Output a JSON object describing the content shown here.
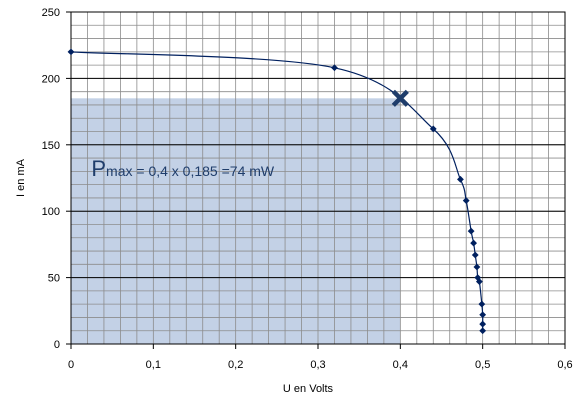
{
  "chart_data": {
    "type": "scatter",
    "title": "",
    "xlabel": "U en Volts",
    "ylabel": "I en mA",
    "xlim": [
      0,
      0.6
    ],
    "ylim": [
      0,
      250
    ],
    "x_tick_labels": [
      "0",
      "0,1",
      "0,2",
      "0,3",
      "0,4",
      "0,5",
      "0,6"
    ],
    "y_tick_labels": [
      "0",
      "50",
      "100",
      "150",
      "200",
      "250"
    ],
    "grid": true,
    "x_minor_step": 0.02,
    "y_minor_step": 10,
    "series": [
      {
        "marker": "diamond",
        "line": "smooth",
        "color": "#00205f",
        "points": [
          [
            0.0,
            220
          ],
          [
            0.32,
            208
          ],
          [
            0.44,
            162
          ],
          [
            0.473,
            124
          ],
          [
            0.48,
            108
          ],
          [
            0.486,
            85
          ],
          [
            0.489,
            76
          ],
          [
            0.491,
            67
          ],
          [
            0.493,
            58
          ],
          [
            0.494,
            50
          ],
          [
            0.496,
            47
          ],
          [
            0.499,
            30
          ],
          [
            0.5,
            22
          ],
          [
            0.5,
            15
          ],
          [
            0.5,
            10
          ]
        ]
      }
    ],
    "highlight_rect": {
      "x": [
        0,
        0.4
      ],
      "y": [
        0,
        185
      ],
      "color": "#b9c9e2"
    },
    "max_marker": {
      "x": 0.4,
      "y": 185,
      "symbol": "✖",
      "color": "#1f3d6b"
    },
    "annotation": {
      "prefix": "P",
      "subscript": "max",
      "text": " = 0,4 x 0,185 =74 mW",
      "anchor": [
        0.015,
        122
      ]
    }
  }
}
